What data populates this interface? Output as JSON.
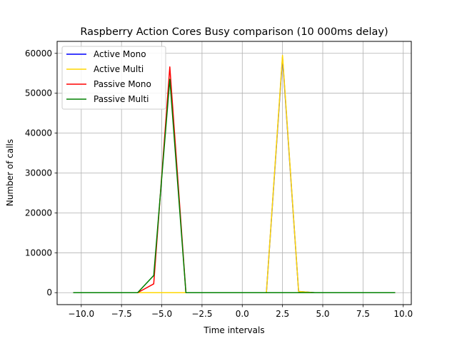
{
  "chart_data": {
    "type": "line",
    "title": "Raspberry Action Cores Busy comparison (10 000ms delay)",
    "xlabel": "Time intervals",
    "ylabel": "Number of calls",
    "xlim": [
      -11.5,
      10.5
    ],
    "ylim": [
      -3000,
      63000
    ],
    "xticks": [
      -10.0,
      -7.5,
      -5.0,
      -2.5,
      0.0,
      2.5,
      5.0,
      7.5,
      10.0
    ],
    "xtick_labels": [
      "−10.0",
      "−7.5",
      "−5.0",
      "−2.5",
      "0.0",
      "2.5",
      "5.0",
      "7.5",
      "10.0"
    ],
    "yticks": [
      0,
      10000,
      20000,
      30000,
      40000,
      50000,
      60000
    ],
    "ytick_labels": [
      "0",
      "10000",
      "20000",
      "30000",
      "40000",
      "50000",
      "60000"
    ],
    "grid": true,
    "legend_position": "top-left",
    "x": [
      -10.5,
      -9.5,
      -8.5,
      -7.5,
      -6.5,
      -5.5,
      -4.5,
      -3.5,
      -2.5,
      -1.5,
      -0.5,
      0.5,
      1.5,
      2.5,
      3.5,
      4.5,
      5.5,
      6.5,
      7.5,
      8.5,
      9.5
    ],
    "series": [
      {
        "name": "Active Mono",
        "color": "#0000ff",
        "values": [
          0,
          0,
          0,
          0,
          0,
          0,
          0,
          0,
          0,
          0,
          0,
          0,
          0,
          59000,
          300,
          0,
          0,
          0,
          0,
          0,
          0
        ]
      },
      {
        "name": "Active Multi",
        "color": "#ffd700",
        "values": [
          0,
          0,
          0,
          0,
          0,
          0,
          0,
          0,
          0,
          0,
          0,
          0,
          0,
          59500,
          300,
          0,
          0,
          0,
          0,
          0,
          0
        ]
      },
      {
        "name": "Passive Mono",
        "color": "#ff0000",
        "values": [
          0,
          0,
          0,
          0,
          0,
          2200,
          56600,
          0,
          0,
          0,
          0,
          0,
          0,
          0,
          0,
          0,
          0,
          0,
          0,
          0,
          0
        ]
      },
      {
        "name": "Passive Multi",
        "color": "#008000",
        "values": [
          0,
          0,
          0,
          0,
          0,
          4300,
          53500,
          0,
          0,
          0,
          0,
          0,
          0,
          0,
          0,
          0,
          0,
          0,
          0,
          0,
          0
        ]
      }
    ]
  }
}
